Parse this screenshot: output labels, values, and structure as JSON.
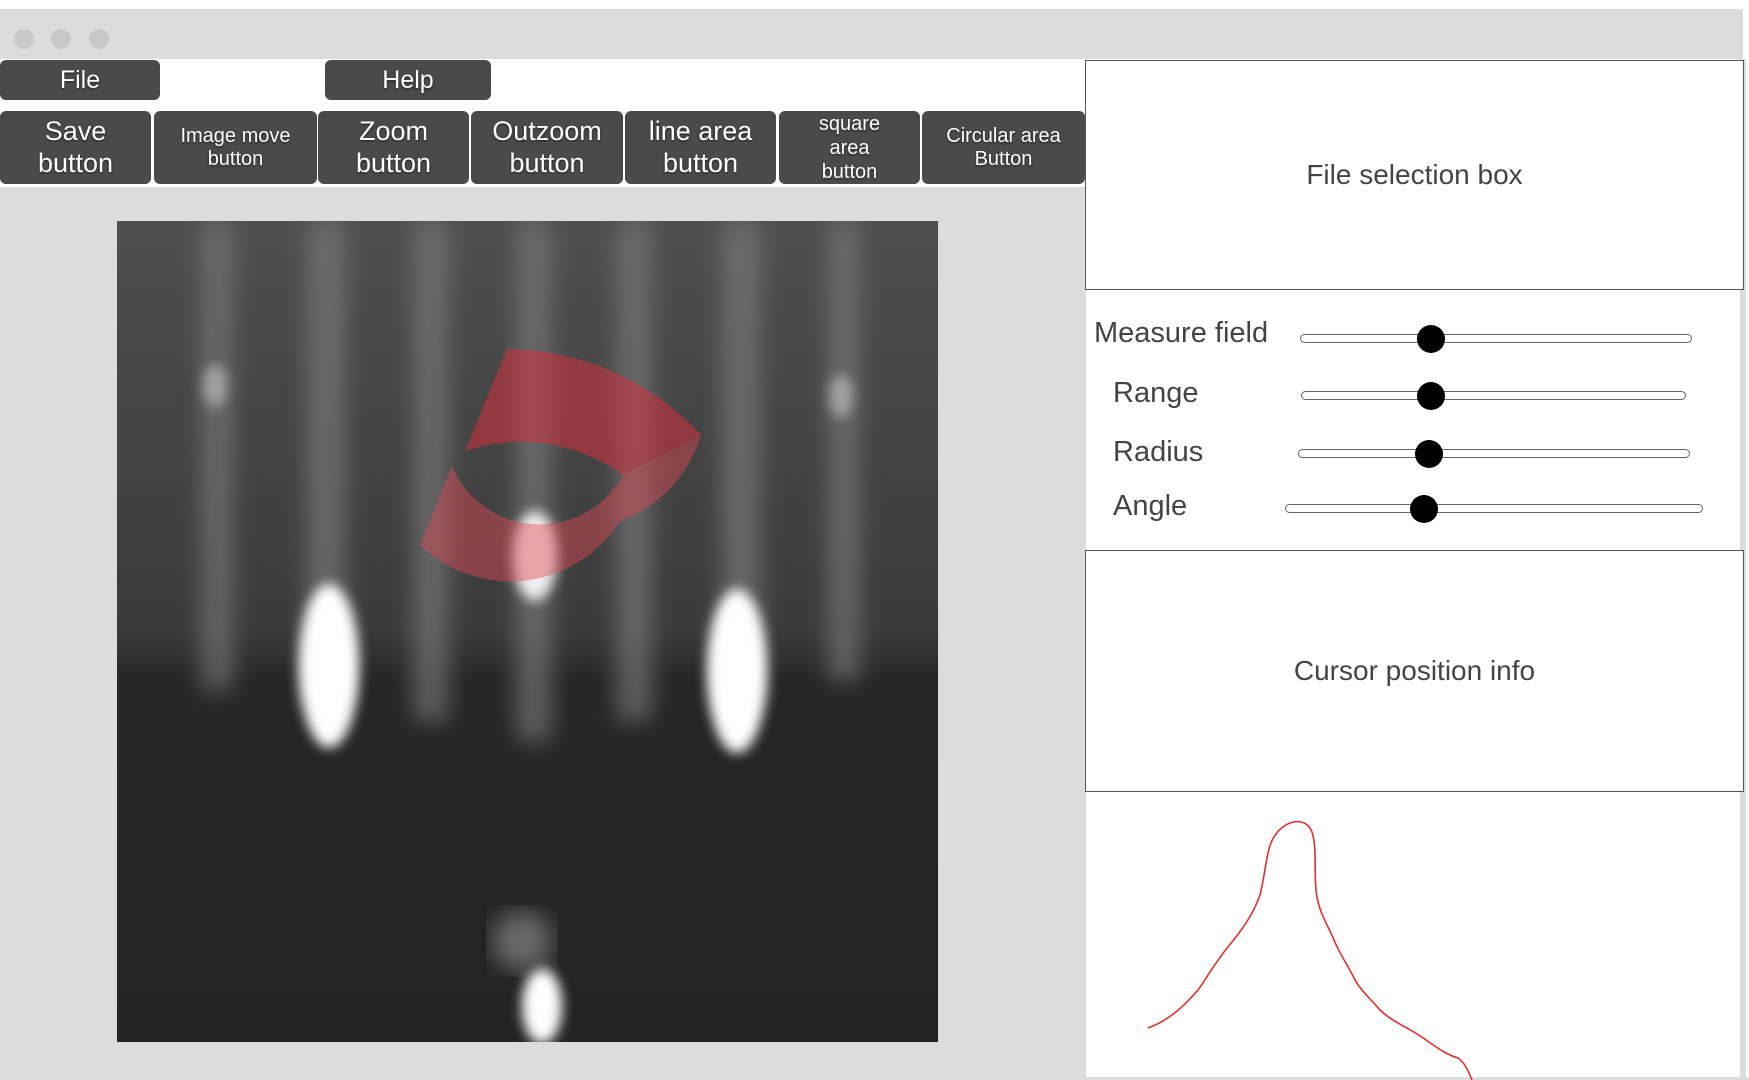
{
  "menu": {
    "file": "File",
    "help": "Help"
  },
  "toolbar": {
    "save": "Save\nbutton",
    "image_move": "Image move\nbutton",
    "zoom": "Zoom\nbutton",
    "outzoom": "Outzoom\nbutton",
    "line_area": "line area\nbutton",
    "square_area": "square\narea\nbutton",
    "circular_area": "Circular area\nButton"
  },
  "panels": {
    "file_selection": "File selection box",
    "cursor_info": "Cursor position info"
  },
  "sliders": [
    {
      "label": "Measure field",
      "value": 0.33
    },
    {
      "label": "Range",
      "value": 0.34
    },
    {
      "label": "Radius",
      "value": 0.34
    },
    {
      "label": "Angle",
      "value": 0.33
    }
  ],
  "colors": {
    "button_bg": "#4a4a4a",
    "selection_red": "#d2323c",
    "profile_line": "#e03030"
  }
}
